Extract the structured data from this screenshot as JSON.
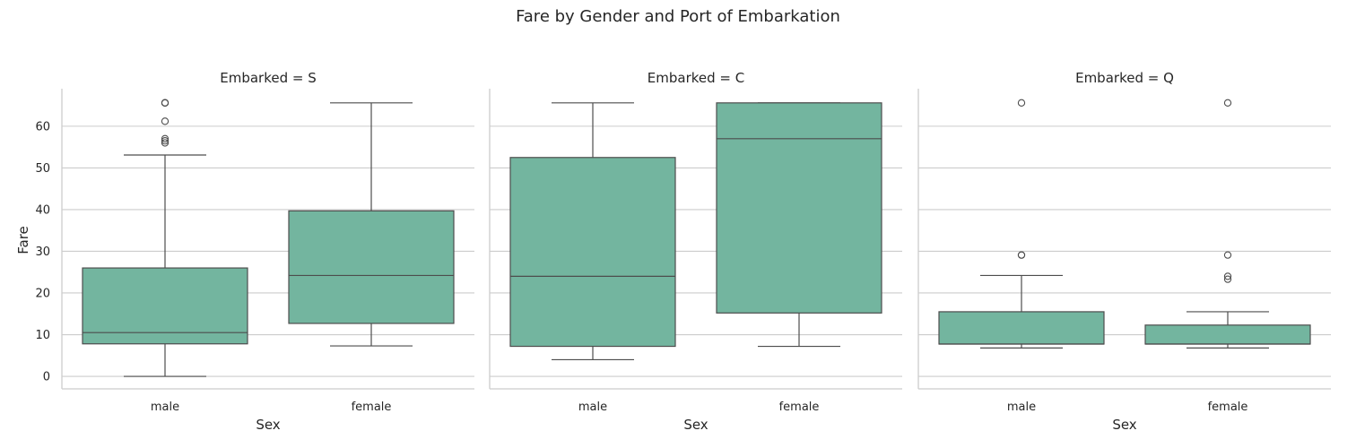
{
  "chart_data": {
    "type": "box",
    "title": "Fare by Gender and Port of Embarkation",
    "xlabel": "Sex",
    "ylabel": "Fare",
    "ylim": [
      -3,
      69
    ],
    "yticks": [
      0,
      10,
      20,
      30,
      40,
      50,
      60
    ],
    "categories": [
      "male",
      "female"
    ],
    "grid": "horizontal",
    "colors": {
      "box_fill": "#73b59f",
      "line": "#4d4d4d",
      "grid": "#cccccc",
      "spine": "#cccccc"
    },
    "facets": [
      {
        "title": "Embarked = S",
        "boxes": [
          {
            "category": "male",
            "whisker_low": 0,
            "q1": 7.8,
            "median": 10.5,
            "q3": 26,
            "whisker_high": 53.1,
            "outliers": [
              56.5,
              57,
              56,
              61.2,
              65.6,
              65.6,
              65.6
            ]
          },
          {
            "category": "female",
            "whisker_low": 7.3,
            "q1": 12.7,
            "median": 24.2,
            "q3": 39.7,
            "whisker_high": 65.6,
            "outliers": []
          }
        ]
      },
      {
        "title": "Embarked = C",
        "boxes": [
          {
            "category": "male",
            "whisker_low": 4,
            "q1": 7.2,
            "median": 24,
            "q3": 52.5,
            "whisker_high": 65.6,
            "outliers": []
          },
          {
            "category": "female",
            "whisker_low": 7.2,
            "q1": 15.2,
            "median": 57,
            "q3": 65.6,
            "whisker_high": 65.6,
            "outliers": []
          }
        ]
      },
      {
        "title": "Embarked = Q",
        "boxes": [
          {
            "category": "male",
            "whisker_low": 6.8,
            "q1": 7.75,
            "median": 7.75,
            "q3": 15.5,
            "whisker_high": 24.2,
            "outliers": [
              29.1,
              29.1,
              65.6
            ]
          },
          {
            "category": "female",
            "whisker_low": 6.8,
            "q1": 7.75,
            "median": 7.75,
            "q3": 12.3,
            "whisker_high": 15.5,
            "outliers": [
              23.3,
              24,
              29.1,
              65.6
            ]
          }
        ]
      }
    ]
  }
}
